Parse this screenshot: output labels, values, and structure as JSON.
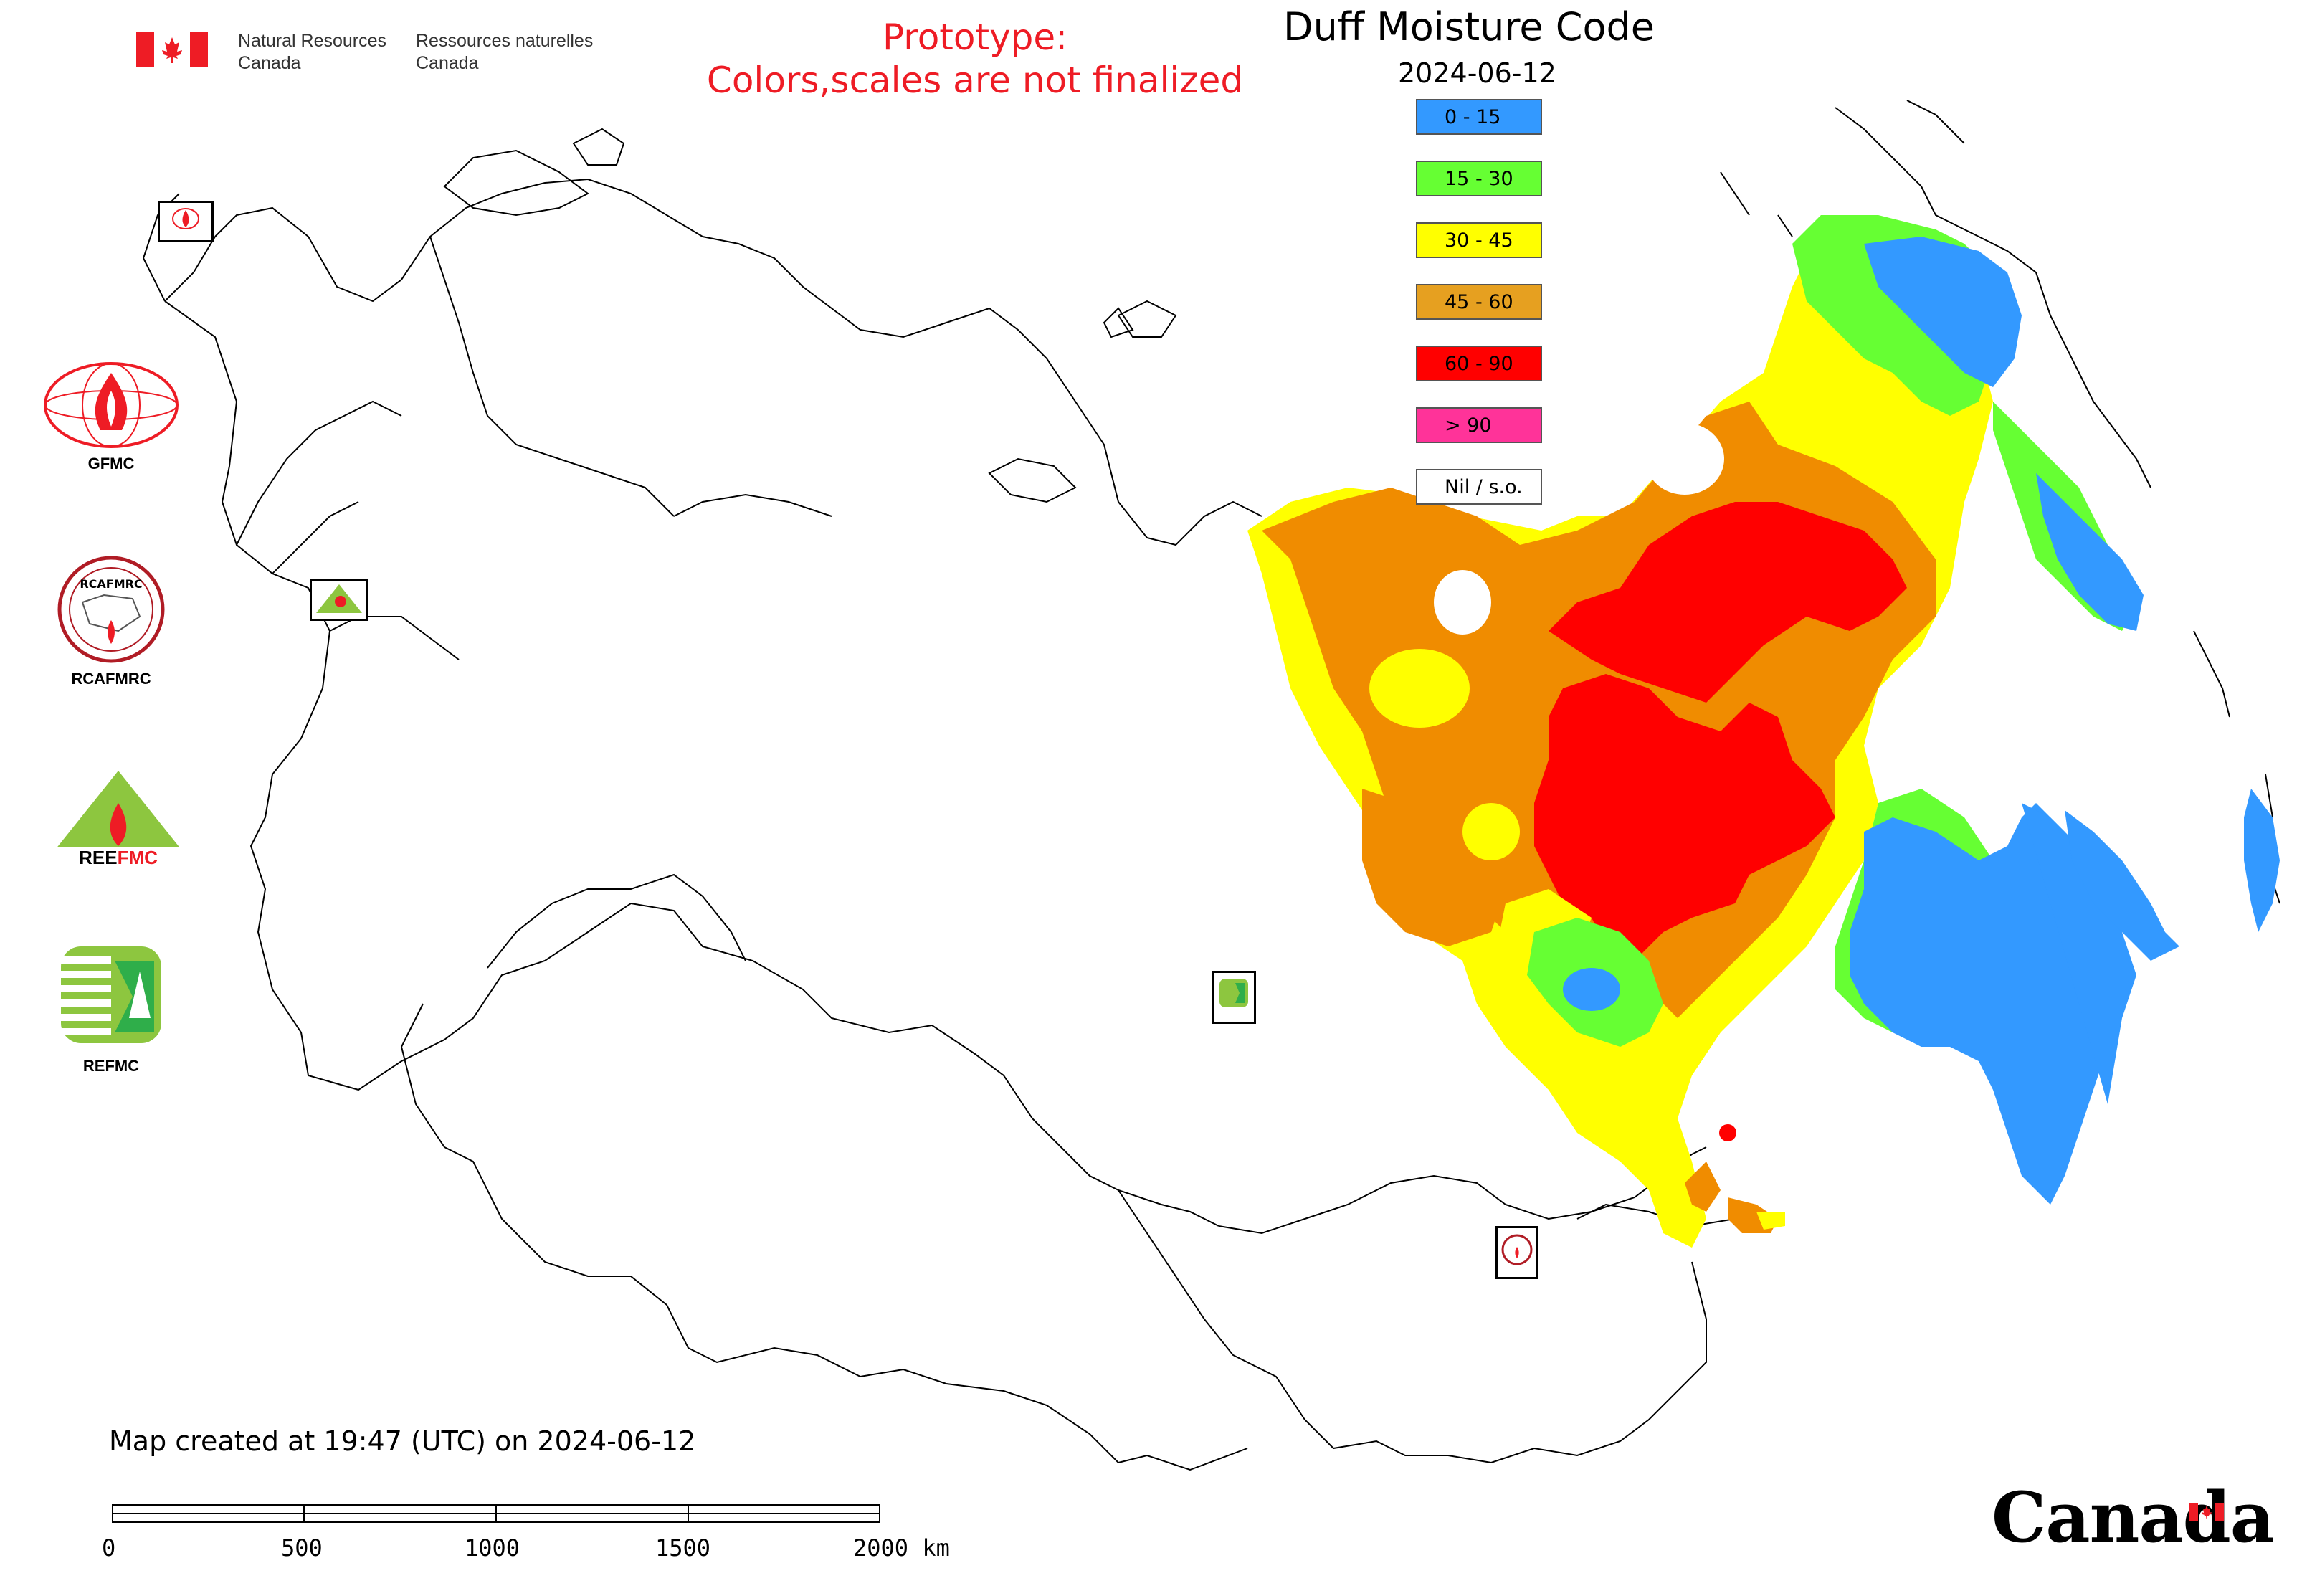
{
  "header": {
    "nrcan_en_line1": "Natural Resources",
    "nrcan_en_line2": "Canada",
    "nrcan_fr_line1": "Ressources naturelles",
    "nrcan_fr_line2": "Canada",
    "prototype_line1": "Prototype:",
    "prototype_line2": "Colors,scales are not finalized"
  },
  "map": {
    "title": "Duff Moisture Code",
    "date": "2024-06-12"
  },
  "legend": {
    "items": [
      {
        "label": "0 - 15",
        "color": "#3399ff"
      },
      {
        "label": "15 - 30",
        "color": "#66ff33"
      },
      {
        "label": "30 - 45",
        "color": "#ffff00"
      },
      {
        "label": "45 - 60",
        "color": "#e6a020"
      },
      {
        "label": "60 - 90",
        "color": "#ff0000"
      },
      {
        "label": "> 90",
        "color": "#ff3399"
      },
      {
        "label": "Nil / s.o.",
        "color": "#ffffff"
      }
    ]
  },
  "organizations": [
    {
      "label": "GFMC",
      "icon": "gfmc-logo-icon"
    },
    {
      "label": "RCAFMRC",
      "icon": "rcafmrc-logo-icon"
    },
    {
      "label": "",
      "icon": "reefmc-logo-icon"
    },
    {
      "label": "REFMC",
      "icon": "refmc-logo-icon"
    }
  ],
  "footer": {
    "created": "Map created at 19:47 (UTC) on 2024-06-12",
    "scale_ticks": [
      "0",
      "500",
      "1000",
      "1500",
      "2000 km"
    ],
    "wordmark": "Canada"
  },
  "colors": {
    "orange": "#f08c00",
    "red": "#ff0000",
    "yellow": "#ffff00",
    "green": "#66ff33",
    "blue": "#3399ff",
    "accent_red": "#ee1c25"
  }
}
